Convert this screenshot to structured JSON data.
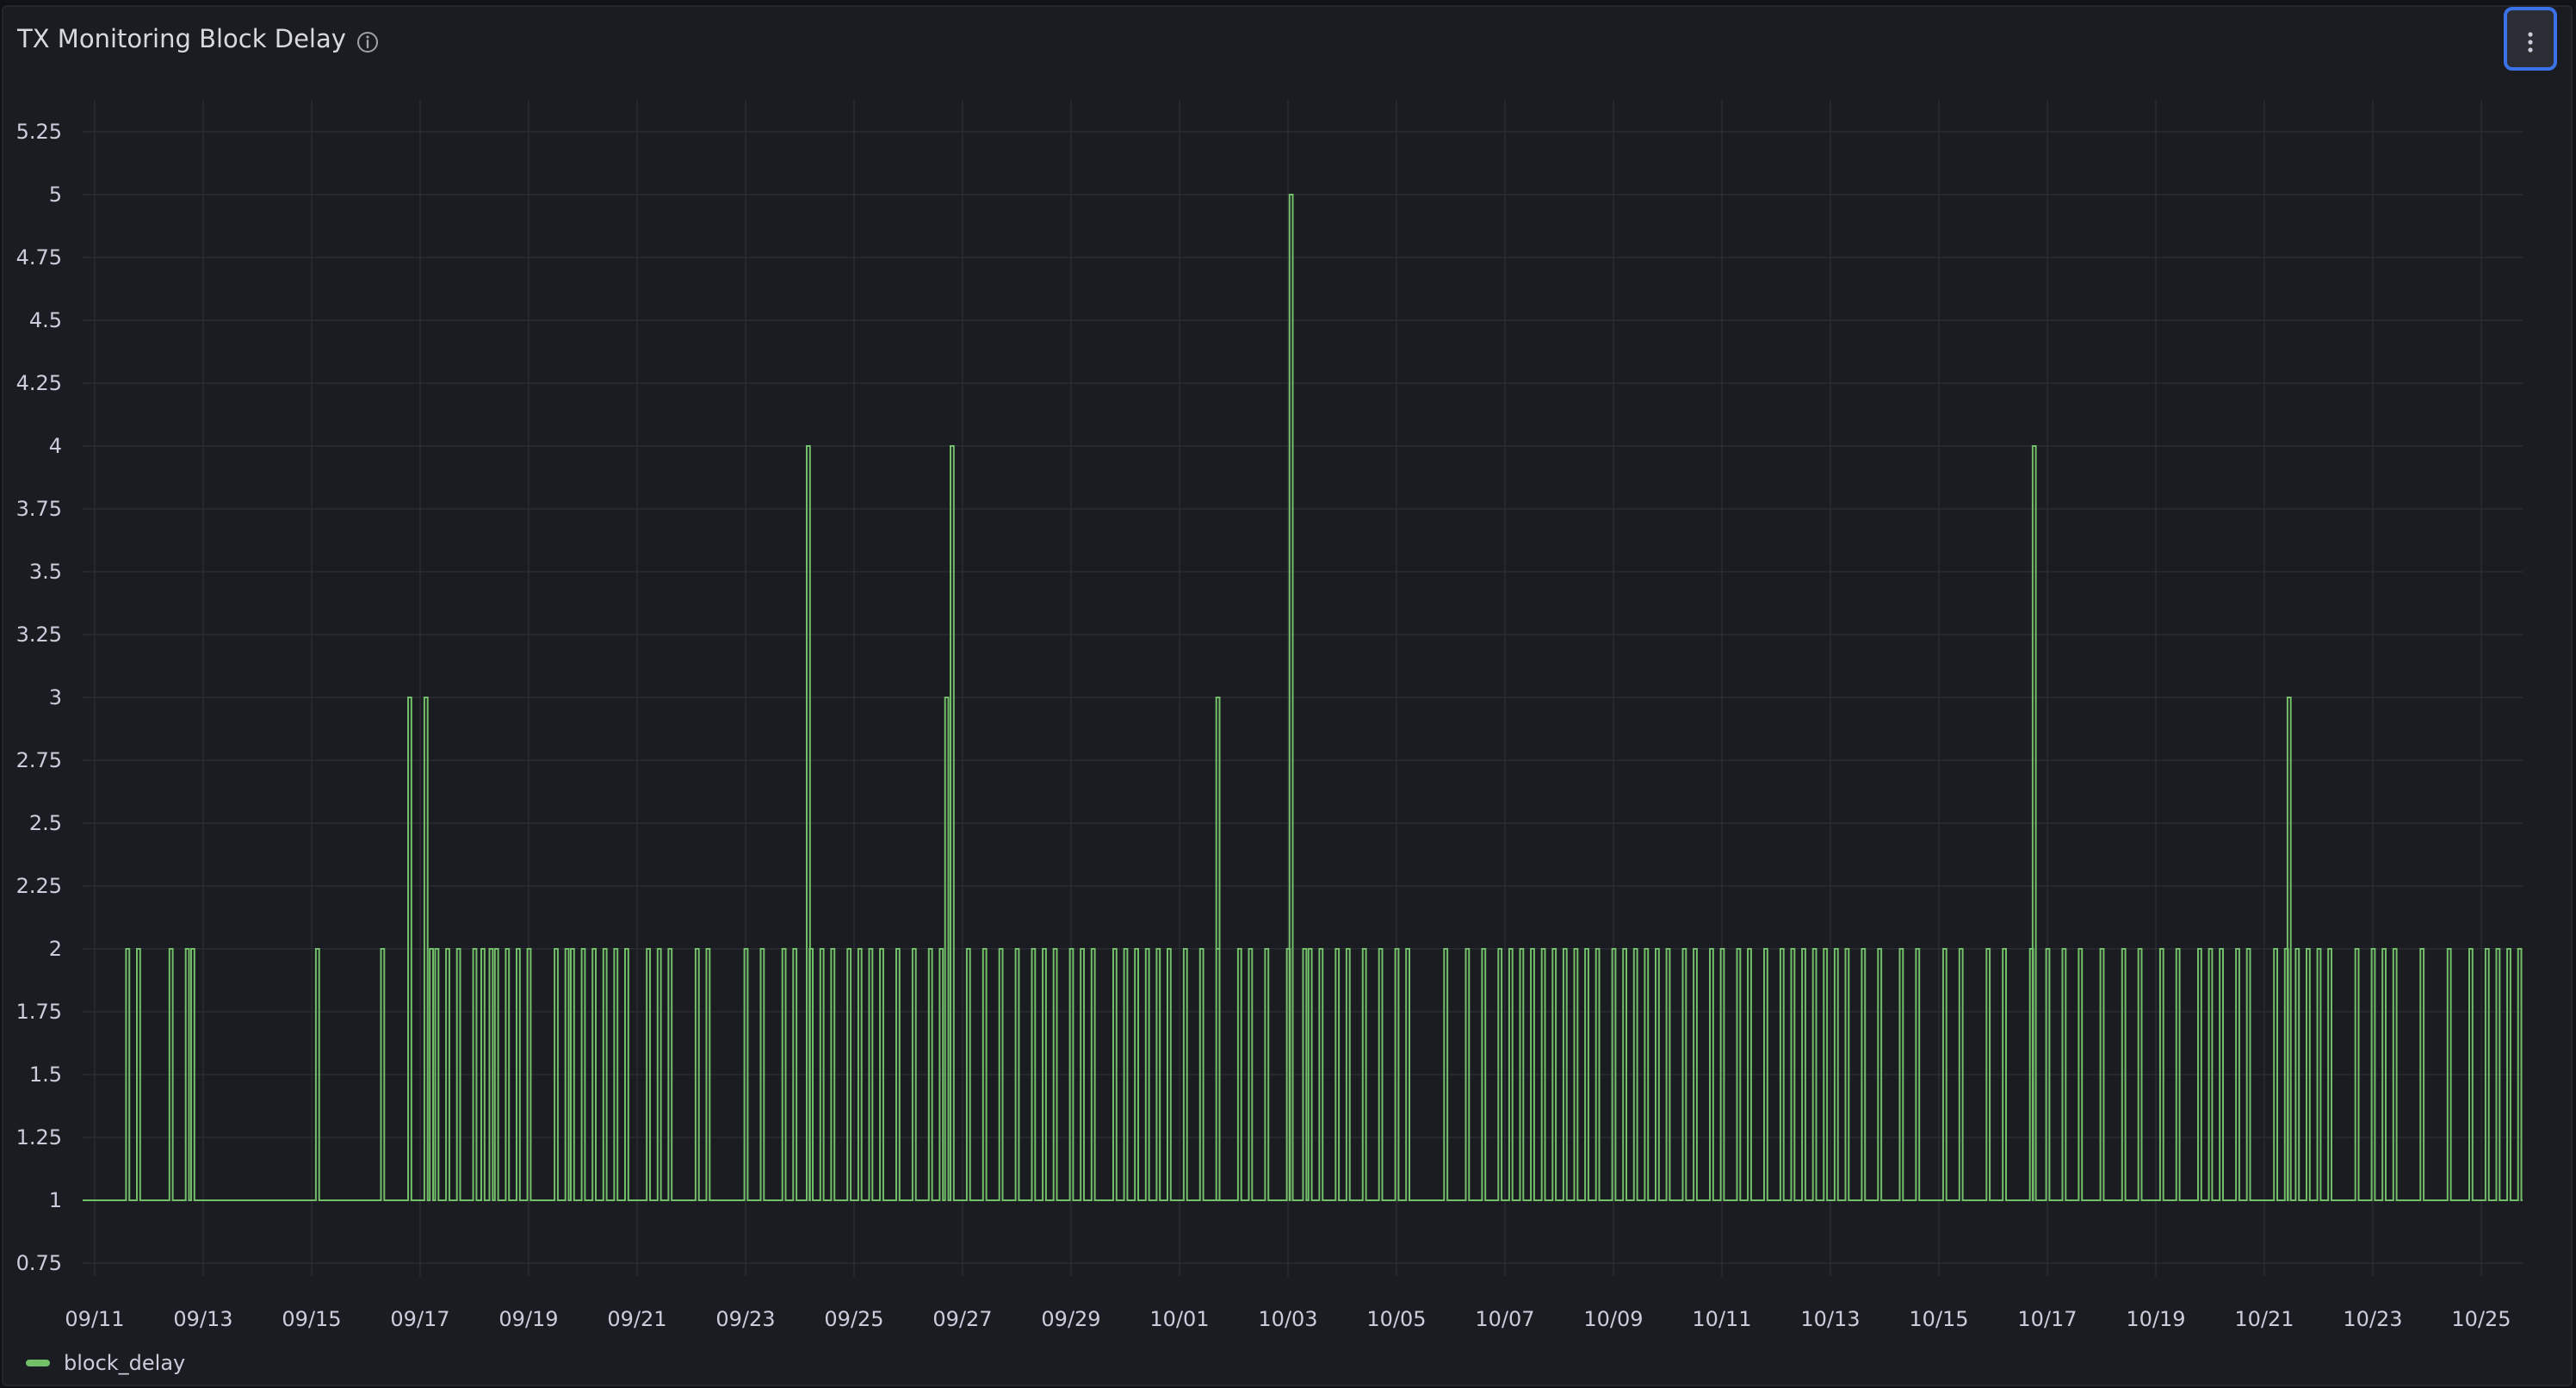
{
  "panel": {
    "title": "TX Monitoring Block Delay",
    "info_icon": "info-circle-icon",
    "menu_icon": "kebab-menu-icon"
  },
  "colors": {
    "background": "#1b1c21",
    "series": "#73bf69",
    "grid": "#2b2d33",
    "text": "#ccccdc",
    "menu_border": "#3a72e8"
  },
  "chart_data": {
    "type": "line",
    "title": "TX Monitoring Block Delay",
    "ylim": [
      0.5,
      5.4
    ],
    "y_ticks": [
      0.75,
      1,
      1.25,
      1.5,
      1.75,
      2,
      2.25,
      2.5,
      2.75,
      3,
      3.25,
      3.5,
      3.75,
      4,
      4.25,
      4.5,
      4.75,
      5,
      5.25
    ],
    "y_tick_labels": [
      "0.75",
      "1",
      "1.25",
      "1.5",
      "1.75",
      "2",
      "2.25",
      "2.5",
      "2.75",
      "3",
      "3.25",
      "3.5",
      "3.75",
      "4",
      "4.25",
      "4.5",
      "4.75",
      "5",
      "5.25"
    ],
    "x_tick_labels": [
      "09/11",
      "09/13",
      "09/15",
      "09/17",
      "09/19",
      "09/21",
      "09/23",
      "09/25",
      "09/27",
      "09/29",
      "10/01",
      "10/03",
      "10/05",
      "10/07",
      "10/09",
      "10/11",
      "10/13",
      "10/15",
      "10/17",
      "10/19",
      "10/21",
      "10/23",
      "10/25"
    ],
    "x_start": "09/11 00:00",
    "x_end": "10/25 12:00",
    "grid": true,
    "legend_position": "bottom-left",
    "series": [
      {
        "name": "block_delay",
        "color": "#73bf69",
        "baseline": 1,
        "spike_days": [
          0.8,
          1.0,
          1.6,
          1.9,
          2.0,
          4.3,
          5.5,
          6.4,
          6.5,
          6.7,
          6.9,
          7.2,
          7.35,
          7.5,
          7.6,
          7.8,
          8.0,
          8.2,
          8.7,
          8.9,
          9.0,
          9.2,
          9.4,
          9.6,
          9.8,
          10.0,
          10.4,
          10.6,
          10.8,
          11.3,
          11.5,
          12.2,
          12.5,
          12.9,
          13.1,
          13.4,
          13.6,
          13.8,
          14.1,
          14.3,
          14.5,
          14.7,
          15.0,
          15.3,
          15.6,
          15.8,
          16.3,
          16.6,
          16.9,
          17.2,
          17.5,
          17.7,
          17.9,
          18.2,
          18.4,
          18.6,
          19.0,
          19.2,
          19.4,
          19.6,
          19.8,
          20.0,
          20.3,
          20.6,
          20.9,
          21.3,
          21.5,
          21.8,
          22.2,
          22.5,
          22.6,
          22.8,
          23.1,
          23.3,
          23.6,
          23.9,
          24.2,
          24.4,
          25.1,
          25.5,
          25.8,
          26.1,
          26.3,
          26.5,
          26.7,
          26.9,
          27.1,
          27.3,
          27.5,
          27.7,
          27.9,
          28.2,
          28.4,
          28.6,
          28.8,
          29.0,
          29.2,
          29.5,
          29.7,
          30.0,
          30.2,
          30.5,
          30.7,
          31.0,
          31.3,
          31.5,
          31.7,
          31.9,
          32.1,
          32.3,
          32.5,
          32.8,
          33.1,
          33.5,
          33.8,
          34.3,
          34.6,
          35.1,
          35.4,
          35.9,
          36.2,
          36.5,
          36.8,
          37.2,
          37.6,
          37.9,
          38.3,
          38.6,
          39.0,
          39.2,
          39.4,
          39.7,
          39.9,
          40.4,
          40.6,
          40.8,
          41.0,
          41.2,
          41.4,
          41.9,
          42.2,
          42.4,
          42.6,
          43.1,
          43.6,
          44.0,
          44.3,
          44.5,
          44.7,
          44.9
        ],
        "peaks": [
          {
            "day": 6.0,
            "value": 3
          },
          {
            "day": 6.3,
            "value": 3
          },
          {
            "day": 13.35,
            "value": 4
          },
          {
            "day": 15.9,
            "value": 3
          },
          {
            "day": 16.0,
            "value": 4
          },
          {
            "day": 20.9,
            "value": 3
          },
          {
            "day": 22.25,
            "value": 5
          },
          {
            "day": 35.95,
            "value": 4
          },
          {
            "day": 40.65,
            "value": 3
          }
        ]
      }
    ]
  }
}
